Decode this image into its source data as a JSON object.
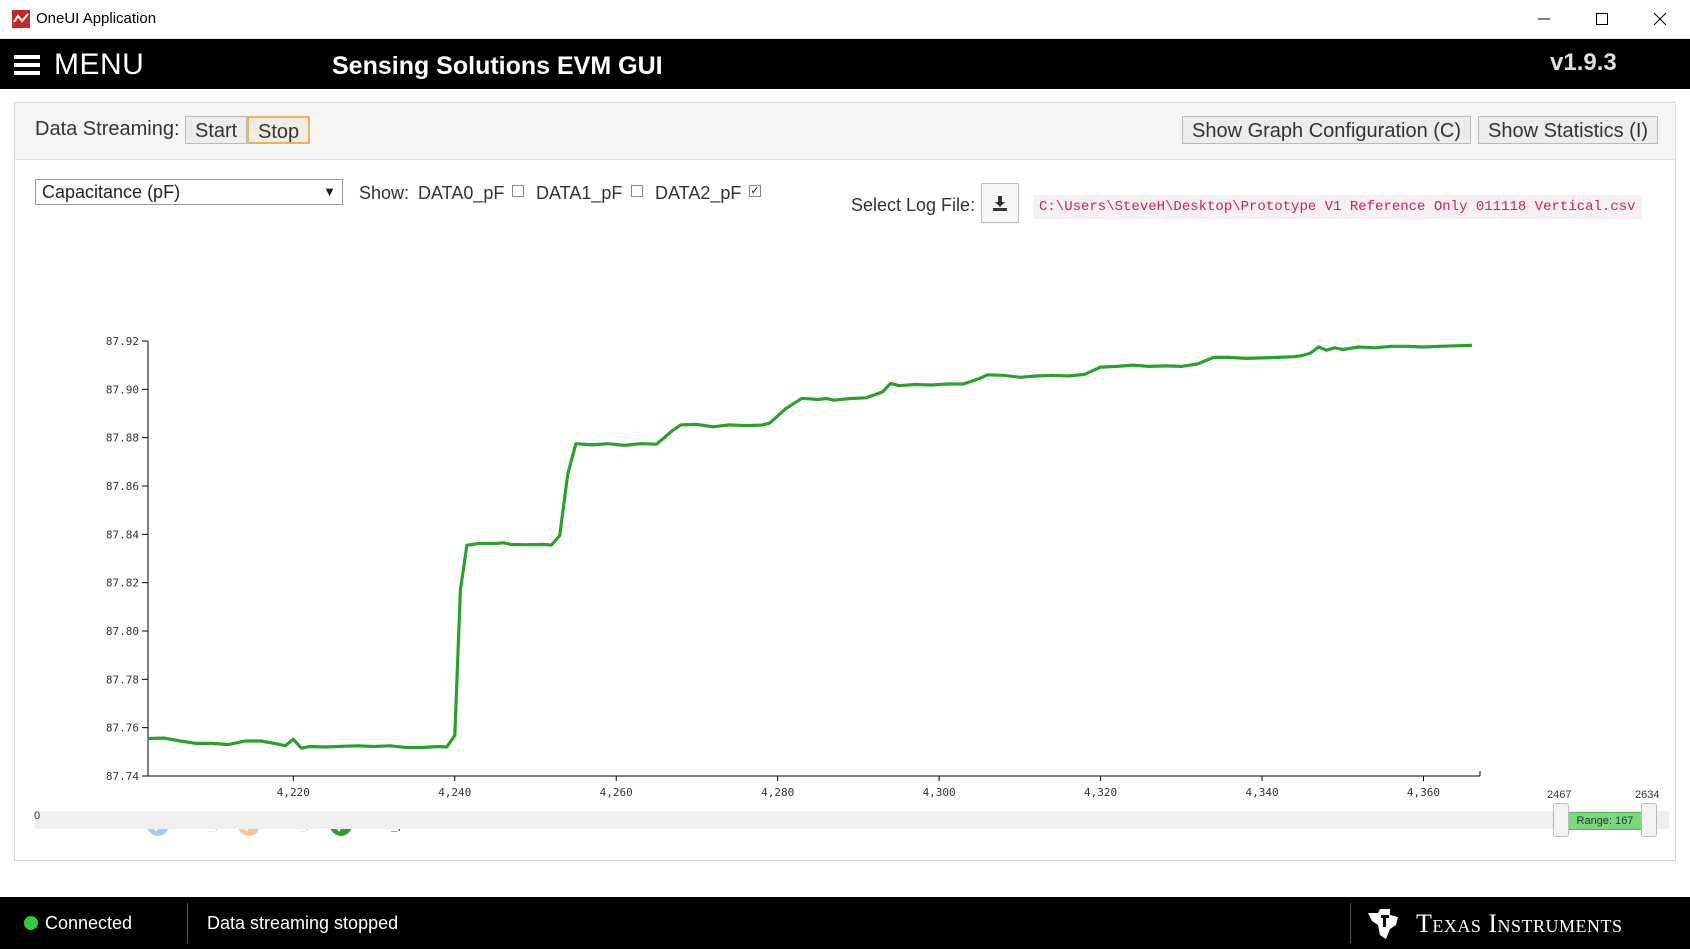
{
  "window": {
    "title": "OneUI Application"
  },
  "header": {
    "menu_label": "MENU",
    "app_title": "Sensing Solutions EVM GUI",
    "version": "v1.9.3"
  },
  "toolbar": {
    "streaming_label": "Data Streaming:",
    "start_label": "Start",
    "stop_label": "Stop",
    "graph_config_label": "Show Graph Configuration (C)",
    "statistics_label": "Show Statistics (I)"
  },
  "controls": {
    "unit_selected": "Capacitance (pF)",
    "show_label": "Show:",
    "channels": [
      {
        "label": "DATA0_pF",
        "checked": false
      },
      {
        "label": "DATA1_pF",
        "checked": false
      },
      {
        "label": "DATA2_pF",
        "checked": true
      }
    ],
    "log_label": "Select Log File:",
    "log_path": "C:\\Users\\SteveH\\Desktop\\Prototype V1 Reference Only 011118 Vertical.csv"
  },
  "chart_data": {
    "type": "line",
    "xlim": [
      4202,
      4367
    ],
    "ylim": [
      87.74,
      87.92
    ],
    "x_ticks": [
      4220,
      4240,
      4260,
      4280,
      4300,
      4320,
      4340,
      4360
    ],
    "y_ticks": [
      87.74,
      87.76,
      87.78,
      87.8,
      87.82,
      87.84,
      87.86,
      87.88,
      87.9,
      87.92
    ],
    "x_tick_labels": [
      "4,220",
      "4,240",
      "4,260",
      "4,280",
      "4,300",
      "4,320",
      "4,340",
      "4,360"
    ],
    "y_tick_labels": [
      "87.74",
      "87.76",
      "87.78",
      "87.80",
      "87.82",
      "87.84",
      "87.86",
      "87.88",
      "87.90",
      "87.92"
    ],
    "legend": [
      "DATA0_pF",
      "DATA1_pF",
      "DATA2_pF"
    ],
    "legend_active": [
      false,
      false,
      true
    ],
    "legend_colors": [
      "#a9c9ea",
      "#f6c59b",
      "#2ca02c"
    ],
    "grid": false,
    "series": [
      {
        "name": "DATA2_pF",
        "color": "#2ca02c",
        "points": [
          [
            4202,
            87.7555
          ],
          [
            4204,
            87.7557
          ],
          [
            4206,
            87.7545
          ],
          [
            4208,
            87.7535
          ],
          [
            4210,
            87.7535
          ],
          [
            4212,
            87.753
          ],
          [
            4214,
            87.7545
          ],
          [
            4216,
            87.7545
          ],
          [
            4218,
            87.7533
          ],
          [
            4219,
            87.7525
          ],
          [
            4220,
            87.7552
          ],
          [
            4221,
            87.7515
          ],
          [
            4222,
            87.7522
          ],
          [
            4224,
            87.752
          ],
          [
            4226,
            87.7523
          ],
          [
            4228,
            87.7525
          ],
          [
            4230,
            87.7522
          ],
          [
            4232,
            87.7525
          ],
          [
            4234,
            87.7518
          ],
          [
            4236,
            87.7518
          ],
          [
            4238,
            87.7522
          ],
          [
            4239,
            87.752
          ],
          [
            4240,
            87.7568
          ],
          [
            4240.7,
            87.817
          ],
          [
            4241.5,
            87.8355
          ],
          [
            4243,
            87.8362
          ],
          [
            4245,
            87.8362
          ],
          [
            4246,
            87.8365
          ],
          [
            4247,
            87.8358
          ],
          [
            4249,
            87.8357
          ],
          [
            4251,
            87.8358
          ],
          [
            4252,
            87.8356
          ],
          [
            4253,
            87.8395
          ],
          [
            4254,
            87.865
          ],
          [
            4255,
            87.8775
          ],
          [
            4257,
            87.877
          ],
          [
            4259,
            87.8775
          ],
          [
            4261,
            87.8768
          ],
          [
            4263,
            87.8775
          ],
          [
            4265,
            87.8773
          ],
          [
            4267,
            87.883
          ],
          [
            4268,
            87.8853
          ],
          [
            4270,
            87.8855
          ],
          [
            4272,
            87.8845
          ],
          [
            4274,
            87.8853
          ],
          [
            4276,
            87.885
          ],
          [
            4278,
            87.8852
          ],
          [
            4279,
            87.886
          ],
          [
            4281,
            87.892
          ],
          [
            4283,
            87.8963
          ],
          [
            4285,
            87.8958
          ],
          [
            4286,
            87.8962
          ],
          [
            4287,
            87.8955
          ],
          [
            4289,
            87.8962
          ],
          [
            4291,
            87.8965
          ],
          [
            4293,
            87.899
          ],
          [
            4294,
            87.9025
          ],
          [
            4295,
            87.9015
          ],
          [
            4297,
            87.902
          ],
          [
            4299,
            87.9018
          ],
          [
            4301,
            87.9022
          ],
          [
            4303,
            87.9022
          ],
          [
            4305,
            87.9045
          ],
          [
            4306,
            87.906
          ],
          [
            4308,
            87.9058
          ],
          [
            4310,
            87.905
          ],
          [
            4312,
            87.9055
          ],
          [
            4314,
            87.9058
          ],
          [
            4316,
            87.9055
          ],
          [
            4318,
            87.9062
          ],
          [
            4320,
            87.9092
          ],
          [
            4322,
            87.9095
          ],
          [
            4324,
            87.91
          ],
          [
            4326,
            87.9095
          ],
          [
            4328,
            87.9097
          ],
          [
            4330,
            87.9095
          ],
          [
            4332,
            87.9105
          ],
          [
            4334,
            87.9132
          ],
          [
            4336,
            87.9132
          ],
          [
            4338,
            87.9128
          ],
          [
            4340,
            87.913
          ],
          [
            4342,
            87.9132
          ],
          [
            4344,
            87.9135
          ],
          [
            4345,
            87.914
          ],
          [
            4346,
            87.915
          ],
          [
            4347,
            87.9175
          ],
          [
            4348,
            87.9162
          ],
          [
            4349,
            87.9172
          ],
          [
            4350,
            87.9165
          ],
          [
            4352,
            87.9175
          ],
          [
            4354,
            87.9172
          ],
          [
            4356,
            87.9178
          ],
          [
            4358,
            87.9178
          ],
          [
            4360,
            87.9175
          ],
          [
            4362,
            87.9178
          ],
          [
            4364,
            87.918
          ],
          [
            4366,
            87.9182
          ]
        ]
      }
    ]
  },
  "slider": {
    "min_label": "0",
    "low_value": "2467",
    "high_value": "2634",
    "range_label": "Range: 167"
  },
  "statusbar": {
    "connection": "Connected",
    "message": "Data streaming stopped",
    "brand": "Texas Instruments"
  }
}
